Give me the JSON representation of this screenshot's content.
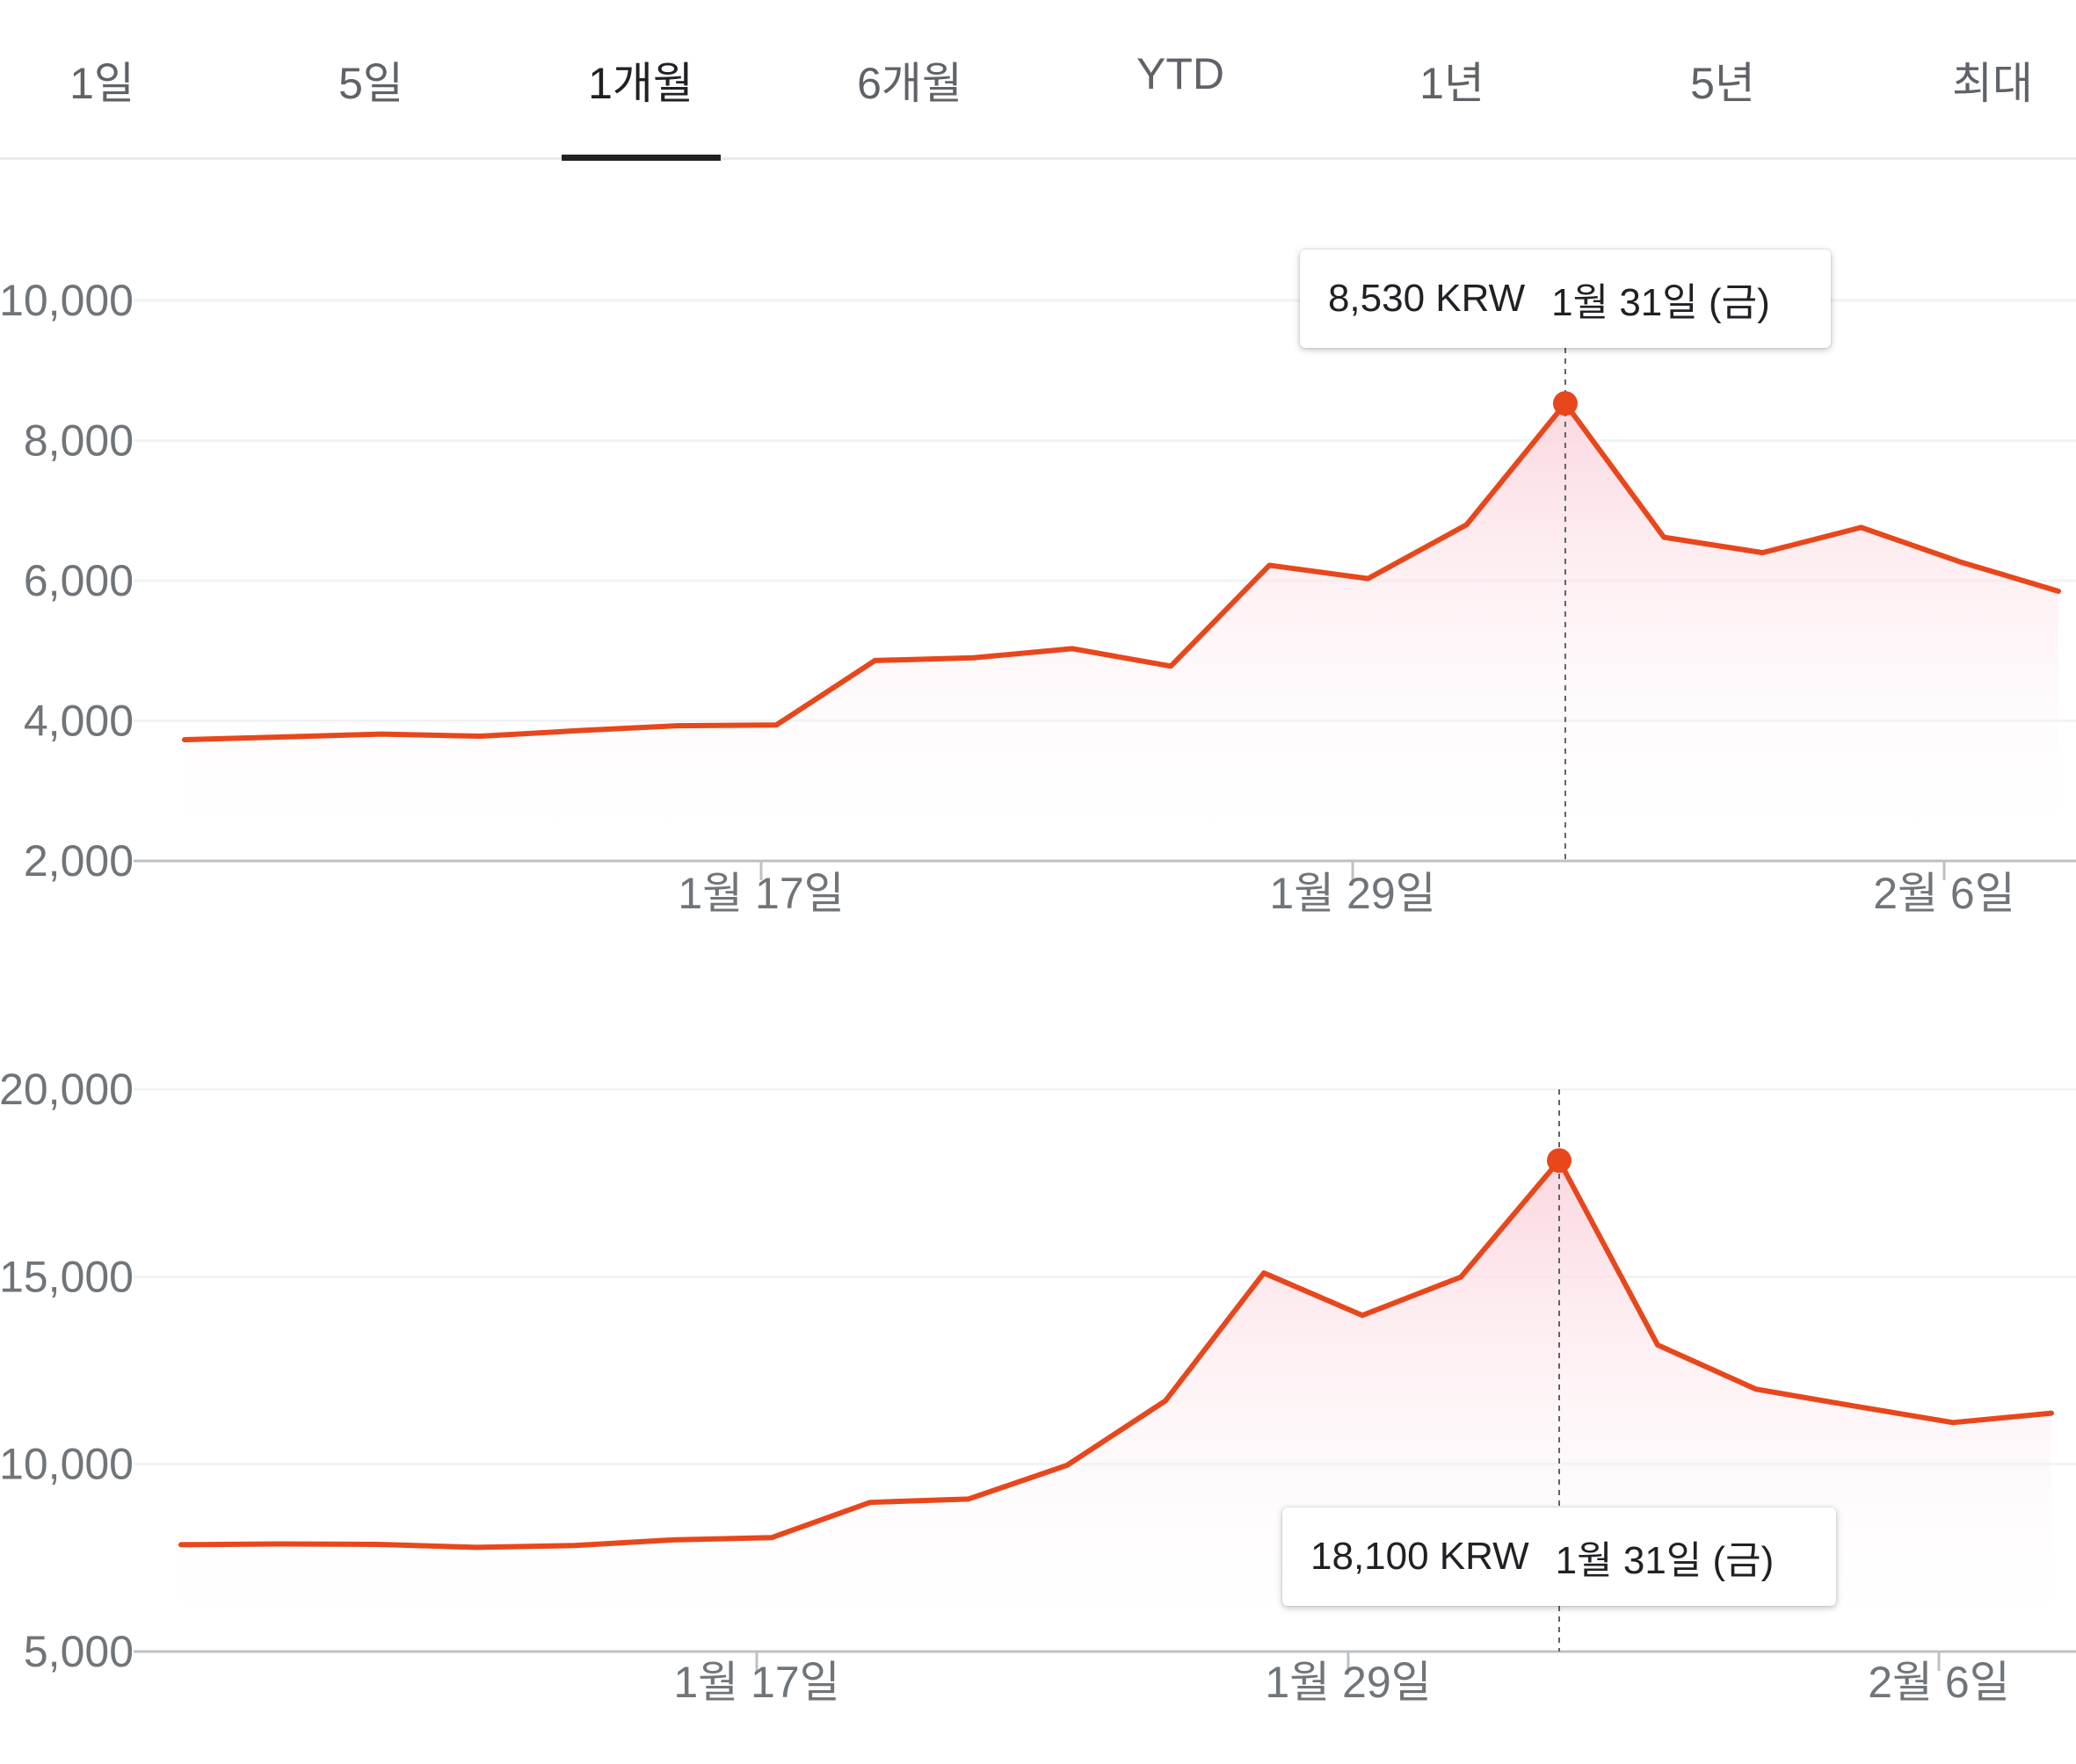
{
  "tabs": [
    {
      "label": "1일",
      "active": false
    },
    {
      "label": "5일",
      "active": false
    },
    {
      "label": "1개월",
      "active": true
    },
    {
      "label": "6개월",
      "active": false
    },
    {
      "label": "YTD",
      "active": false
    },
    {
      "label": "1년",
      "active": false
    },
    {
      "label": "5년",
      "active": false
    },
    {
      "label": "최대",
      "active": false
    }
  ],
  "colors": {
    "line": "#e8471c",
    "fill": "#fbd5de",
    "grid": "#f1f3f4",
    "axis": "#bdc1c6"
  },
  "chart_data": [
    {
      "type": "area",
      "x_tick_labels": [
        "1월 17일",
        "1월 29일",
        "2월 6일"
      ],
      "y_tick_labels": [
        "10,000",
        "8,000",
        "6,000",
        "4,000",
        "2,000"
      ],
      "ylim": [
        2000,
        10000
      ],
      "values": [
        3730,
        3770,
        3810,
        3780,
        3860,
        3930,
        3940,
        4860,
        4900,
        5030,
        4780,
        6220,
        6030,
        6800,
        8530,
        6620,
        6400,
        6760,
        6270,
        5850
      ],
      "highlight": {
        "index": 14,
        "value_label": "8,530 KRW",
        "date_label": "1월 31일 (금)"
      }
    },
    {
      "type": "area",
      "x_tick_labels": [
        "1월 17일",
        "1월 29일",
        "2월 6일"
      ],
      "y_tick_labels": [
        "20,000",
        "15,000",
        "10,000",
        "5,000"
      ],
      "ylim": [
        5000,
        20000
      ],
      "values": [
        7850,
        7870,
        7860,
        7780,
        7830,
        7980,
        8040,
        8980,
        9070,
        9970,
        11690,
        15100,
        13970,
        14990,
        18100,
        13180,
        12000,
        11550,
        11110,
        11360
      ],
      "highlight": {
        "index": 14,
        "value_label": "18,100 KRW",
        "date_label": "1월 31일 (금)"
      }
    }
  ]
}
